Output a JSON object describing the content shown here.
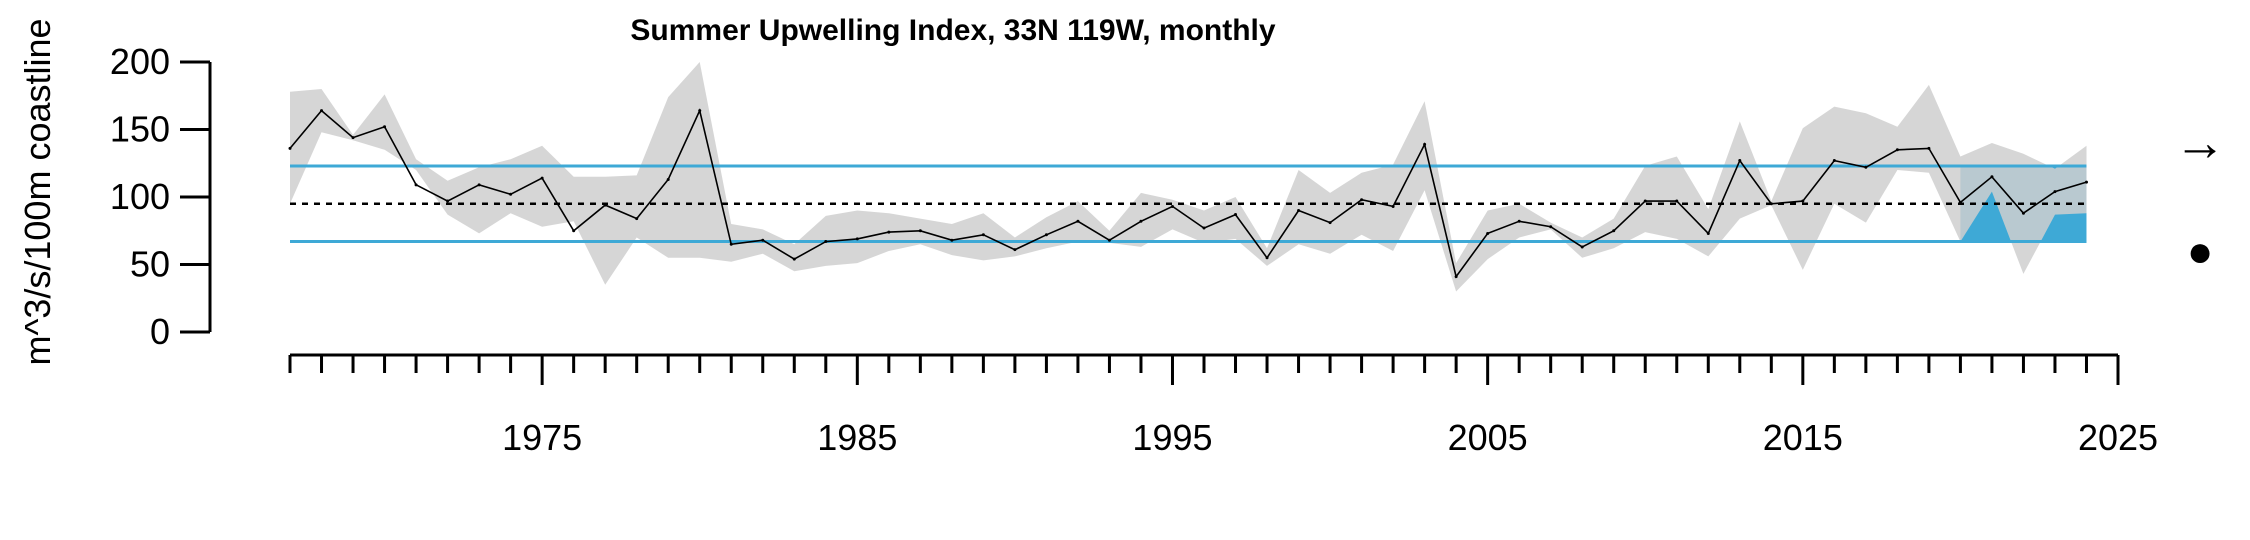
{
  "chart_data": {
    "type": "line",
    "title": "Summer Upwelling Index, 33N 119W, monthly",
    "xlabel": "",
    "ylabel": "m^3/s/100m coastline",
    "xlim": [
      1967,
      2025
    ],
    "ylim": [
      0,
      200
    ],
    "y_ticks": [
      0,
      50,
      100,
      150,
      200
    ],
    "x_ticks_labeled": [
      1975,
      1985,
      1995,
      2005,
      2015,
      2025
    ],
    "x_minor_ticks_every": 1,
    "grid": false,
    "legend": "none",
    "mean": 95,
    "sd_lower": 67,
    "sd_upper": 123,
    "recent_window": [
      2020,
      2024
    ],
    "trend_symbol": "→",
    "status_symbol": "●",
    "series": [
      {
        "x": [
          1967,
          1968,
          1969,
          1970,
          1971,
          1972,
          1973,
          1974,
          1975,
          1976,
          1977,
          1978,
          1979,
          1980,
          1981,
          1982,
          1983,
          1984,
          1985,
          1986,
          1987,
          1988,
          1989,
          1990,
          1991,
          1992,
          1993,
          1994,
          1995,
          1996,
          1997,
          1998,
          1999,
          2000,
          2001,
          2002,
          2003,
          2004,
          2005,
          2006,
          2007,
          2008,
          2009,
          2010,
          2011,
          2012,
          2013,
          2014,
          2015,
          2016,
          2017,
          2018,
          2019,
          2020,
          2021,
          2022,
          2023,
          2024
        ],
        "values": [
          136,
          164,
          144,
          152,
          109,
          97,
          109,
          102,
          114,
          75,
          94,
          84,
          113,
          164,
          65,
          68,
          54,
          67,
          69,
          74,
          75,
          68,
          72,
          61,
          72,
          82,
          68,
          82,
          93,
          77,
          87,
          55,
          90,
          81,
          98,
          93,
          139,
          41,
          73,
          82,
          78,
          63,
          75,
          97,
          97,
          73,
          127,
          95,
          97,
          127,
          122,
          135,
          136,
          96,
          115,
          88,
          104,
          111
        ],
        "lower": [
          95,
          148,
          142,
          135,
          120,
          87,
          73,
          88,
          78,
          82,
          35,
          70,
          55,
          55,
          52,
          58,
          45,
          49,
          51,
          60,
          65,
          57,
          53,
          56,
          62,
          67,
          66,
          63,
          76,
          66,
          69,
          49,
          65,
          58,
          72,
          60,
          105,
          30,
          54,
          70,
          76,
          55,
          62,
          74,
          69,
          56,
          84,
          94,
          46,
          95,
          81,
          120,
          118,
          67,
          104,
          43,
          87,
          88
        ],
        "upper": [
          178,
          180,
          146,
          176,
          128,
          112,
          122,
          128,
          138,
          115,
          115,
          116,
          174,
          200,
          80,
          76,
          65,
          86,
          90,
          88,
          84,
          80,
          88,
          70,
          85,
          97,
          75,
          103,
          98,
          90,
          100,
          62,
          120,
          103,
          118,
          124,
          171,
          51,
          90,
          95,
          81,
          70,
          84,
          123,
          130,
          91,
          156,
          97,
          151,
          167,
          162,
          152,
          183,
          130,
          140,
          132,
          121,
          138
        ]
      }
    ]
  }
}
